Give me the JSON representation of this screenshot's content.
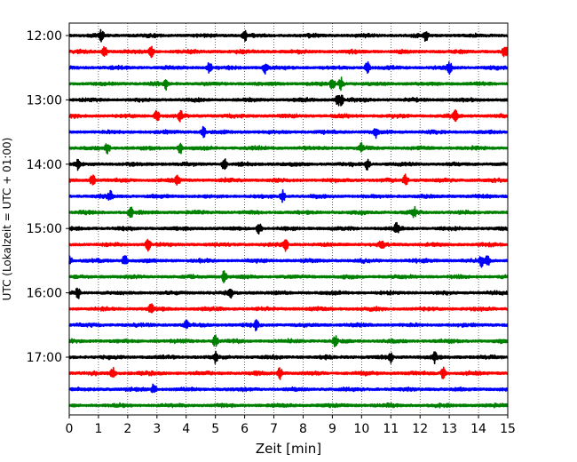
{
  "chart_data": {
    "type": "line",
    "title": "",
    "xlabel": "Zeit  [min]",
    "ylabel": "UTC (Lokalzeit = UTC + 01:00)",
    "xlim": [
      0,
      15
    ],
    "x_ticks": [
      "0",
      "1",
      "2",
      "3",
      "4",
      "5",
      "6",
      "7",
      "8",
      "9",
      "10",
      "11",
      "12",
      "13",
      "14",
      "15"
    ],
    "y_ticks": [
      "12:00",
      "13:00",
      "14:00",
      "15:00",
      "16:00",
      "17:00"
    ],
    "grid": "vertical dotted",
    "trace_colors": [
      "#000000",
      "#ff0000",
      "#0000ff",
      "#008000"
    ],
    "rows": [
      {
        "time": "12:00",
        "color": "#000000",
        "events": [
          1.1,
          6.0,
          12.2
        ]
      },
      {
        "time": "12:15",
        "color": "#ff0000",
        "events": [
          1.2,
          2.8,
          14.9
        ]
      },
      {
        "time": "12:30",
        "color": "#0000ff",
        "events": [
          4.8,
          6.7,
          10.2,
          13.0
        ]
      },
      {
        "time": "12:45",
        "color": "#008000",
        "events": [
          3.3,
          9.0,
          9.3
        ]
      },
      {
        "time": "13:00",
        "color": "#000000",
        "events": [
          9.2,
          9.3
        ]
      },
      {
        "time": "13:15",
        "color": "#ff0000",
        "events": [
          3.0,
          3.8,
          13.2
        ]
      },
      {
        "time": "13:30",
        "color": "#0000ff",
        "events": [
          4.6,
          10.5
        ]
      },
      {
        "time": "13:45",
        "color": "#008000",
        "events": [
          1.3,
          3.8,
          10.0
        ]
      },
      {
        "time": "14:00",
        "color": "#000000",
        "events": [
          0.3,
          5.3,
          10.2
        ]
      },
      {
        "time": "14:15",
        "color": "#ff0000",
        "events": [
          0.8,
          3.7,
          11.5
        ]
      },
      {
        "time": "14:30",
        "color": "#0000ff",
        "events": [
          1.4,
          7.3
        ]
      },
      {
        "time": "14:45",
        "color": "#008000",
        "events": [
          2.1,
          11.8
        ]
      },
      {
        "time": "15:00",
        "color": "#000000",
        "events": [
          6.5,
          11.2
        ]
      },
      {
        "time": "15:15",
        "color": "#ff0000",
        "events": [
          2.7,
          7.4,
          10.7
        ]
      },
      {
        "time": "15:30",
        "color": "#0000ff",
        "events": [
          0.0,
          1.9,
          14.1,
          14.3
        ]
      },
      {
        "time": "15:45",
        "color": "#008000",
        "events": [
          5.3
        ]
      },
      {
        "time": "16:00",
        "color": "#000000",
        "events": [
          0.3,
          5.5
        ]
      },
      {
        "time": "16:15",
        "color": "#ff0000",
        "events": [
          2.8
        ]
      },
      {
        "time": "16:30",
        "color": "#0000ff",
        "events": [
          4.0,
          6.4
        ]
      },
      {
        "time": "16:45",
        "color": "#008000",
        "events": [
          5.0,
          9.1
        ]
      },
      {
        "time": "17:00",
        "color": "#000000",
        "events": [
          5.0,
          11.0,
          12.5
        ]
      },
      {
        "time": "17:15",
        "color": "#ff0000",
        "events": [
          1.5,
          7.2,
          12.8
        ]
      },
      {
        "time": "17:30",
        "color": "#0000ff",
        "events": [
          2.9
        ]
      },
      {
        "time": "17:45",
        "color": "#008000",
        "events": []
      }
    ]
  }
}
